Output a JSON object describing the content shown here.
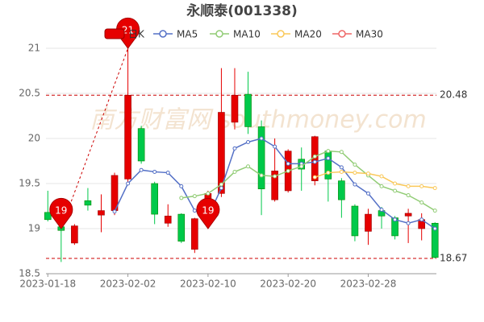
{
  "chart_data": {
    "type": "candlestick",
    "title": "永顺泰(001338)",
    "watermark": "南方财富网 southmoney.com",
    "categories": [
      "2023-01-18",
      null,
      null,
      null,
      null,
      null,
      "2023-02-02",
      null,
      null,
      null,
      null,
      null,
      "2023-02-10",
      null,
      null,
      null,
      null,
      null,
      "2023-02-20",
      null,
      null,
      null,
      null,
      null,
      "2023-02-28",
      null,
      null,
      null,
      null,
      null
    ],
    "candle": {
      "name": "日K",
      "up_color": "#e60000",
      "down_color": "#00c94a",
      "open": [
        19.18,
        19.02,
        18.84,
        19.31,
        19.15,
        19.2,
        19.55,
        20.11,
        19.5,
        19.06,
        19.16,
        18.77,
        19.06,
        19.39,
        20.18,
        20.49,
        20.13,
        19.32,
        19.42,
        19.77,
        19.53,
        19.86,
        19.53,
        19.25,
        18.97,
        19.2,
        19.12,
        19.14,
        19.0,
        19.06
      ],
      "close": [
        19.1,
        18.98,
        19.03,
        19.26,
        19.2,
        19.59,
        20.48,
        19.75,
        19.16,
        19.14,
        18.86,
        19.11,
        19.39,
        20.29,
        20.48,
        20.13,
        19.44,
        19.64,
        19.86,
        19.66,
        20.02,
        19.55,
        19.32,
        18.92,
        19.16,
        19.14,
        18.92,
        19.17,
        19.1,
        18.68
      ],
      "high": [
        19.42,
        19.03,
        19.05,
        19.45,
        19.38,
        19.62,
        21.0,
        20.14,
        19.52,
        19.27,
        19.17,
        19.12,
        19.42,
        20.78,
        20.78,
        20.74,
        20.2,
        20.0,
        19.88,
        19.9,
        20.03,
        19.88,
        19.56,
        19.27,
        19.22,
        19.24,
        19.14,
        19.22,
        19.17,
        19.07
      ],
      "low": [
        19.08,
        18.63,
        18.82,
        19.2,
        18.96,
        19.15,
        19.5,
        19.72,
        19.05,
        19.02,
        18.84,
        18.73,
        19.03,
        19.35,
        20.1,
        20.05,
        19.15,
        19.3,
        19.4,
        19.42,
        19.48,
        19.3,
        19.12,
        18.86,
        18.82,
        19.0,
        18.88,
        18.84,
        18.87,
        18.67
      ]
    },
    "series": [
      {
        "name": "MA5",
        "color": "#5470c6",
        "values": [
          null,
          null,
          null,
          null,
          null,
          19.19,
          19.5,
          19.65,
          19.63,
          19.62,
          19.47,
          19.2,
          19.13,
          19.45,
          19.89,
          19.96,
          20.0,
          19.91,
          19.72,
          19.72,
          19.74,
          19.78,
          19.68,
          19.49,
          19.39,
          19.21,
          19.1,
          19.06,
          19.1,
          19.0
        ]
      },
      {
        "name": "MA10",
        "color": "#91cc75",
        "values": [
          null,
          null,
          null,
          null,
          null,
          null,
          null,
          null,
          null,
          null,
          19.34,
          19.36,
          19.39,
          19.49,
          19.63,
          19.69,
          19.59,
          19.58,
          19.64,
          19.69,
          19.8,
          19.86,
          19.85,
          19.71,
          19.59,
          19.47,
          19.42,
          19.37,
          19.29,
          19.2
        ]
      },
      {
        "name": "MA20",
        "color": "#fac858",
        "values": [
          null,
          null,
          null,
          null,
          null,
          null,
          null,
          null,
          null,
          null,
          null,
          null,
          null,
          null,
          null,
          null,
          null,
          null,
          null,
          null,
          19.57,
          19.62,
          19.63,
          19.62,
          19.61,
          19.58,
          19.5,
          19.47,
          19.47,
          19.45
        ]
      },
      {
        "name": "MA30",
        "color": "#ee6666",
        "values": [
          null,
          null,
          null,
          null,
          null,
          null,
          null,
          null,
          null,
          null,
          null,
          null,
          null,
          null,
          null,
          null,
          null,
          null,
          null,
          null,
          null,
          null,
          null,
          null,
          null,
          null,
          null,
          null,
          null,
          null
        ]
      }
    ],
    "ylim": [
      18.5,
      21
    ],
    "yticks": [
      18.5,
      19,
      19.5,
      20,
      20.5,
      21
    ],
    "grid": true,
    "mark_lines": [
      20.48,
      18.67
    ],
    "pins": [
      {
        "category": 6,
        "value": 21
      },
      {
        "category": 1,
        "value": 19
      },
      {
        "category": 12,
        "value": 19
      }
    ]
  }
}
